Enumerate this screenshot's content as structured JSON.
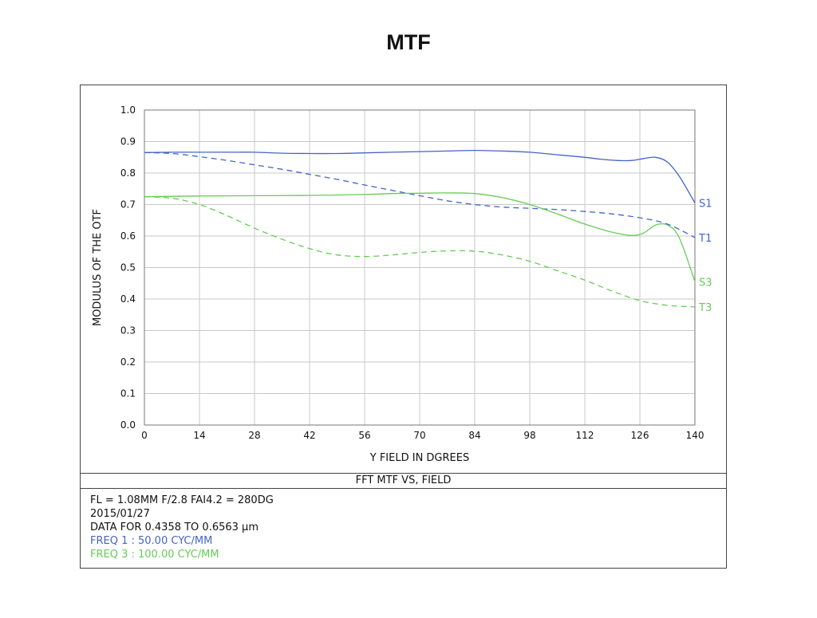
{
  "title": "MTF",
  "chart_data": {
    "type": "line",
    "xlabel": "Y  FIELD IN DGREES",
    "ylabel": "MODULUS  OF  THE  OTF",
    "xlim": [
      0,
      140
    ],
    "ylim": [
      0,
      1.0
    ],
    "x_ticks": [
      0,
      14,
      28,
      42,
      56,
      70,
      84,
      98,
      112,
      126,
      140
    ],
    "y_ticks": [
      "0.0",
      "0.1",
      "0.2",
      "0.3",
      "0.4",
      "0.5",
      "0.6",
      "0.7",
      "0.8",
      "0.9",
      "1.0"
    ],
    "grid": true,
    "series": [
      {
        "name": "S1",
        "color": "#4464c8",
        "dash": false,
        "x": [
          0,
          7,
          14,
          21,
          28,
          35,
          42,
          49,
          56,
          63,
          70,
          77,
          84,
          91,
          98,
          105,
          112,
          116,
          120,
          124,
          127,
          130,
          133,
          136,
          140
        ],
        "y": [
          0.865,
          0.866,
          0.866,
          0.866,
          0.866,
          0.863,
          0.862,
          0.862,
          0.864,
          0.866,
          0.868,
          0.87,
          0.872,
          0.87,
          0.866,
          0.858,
          0.85,
          0.844,
          0.84,
          0.84,
          0.846,
          0.85,
          0.835,
          0.79,
          0.705
        ]
      },
      {
        "name": "T1",
        "color": "#4464c8",
        "dash": true,
        "x": [
          0,
          7,
          14,
          21,
          28,
          35,
          42,
          49,
          56,
          63,
          70,
          77,
          84,
          91,
          98,
          105,
          112,
          119,
          126,
          133,
          140
        ],
        "y": [
          0.865,
          0.862,
          0.852,
          0.84,
          0.826,
          0.812,
          0.796,
          0.78,
          0.762,
          0.745,
          0.728,
          0.712,
          0.7,
          0.692,
          0.688,
          0.684,
          0.678,
          0.67,
          0.658,
          0.638,
          0.595
        ]
      },
      {
        "name": "S3",
        "color": "#66cc55",
        "dash": false,
        "x": [
          0,
          14,
          28,
          42,
          56,
          63,
          70,
          77,
          84,
          91,
          98,
          105,
          112,
          119,
          124,
          127,
          130,
          133,
          136,
          140
        ],
        "y": [
          0.725,
          0.727,
          0.728,
          0.729,
          0.732,
          0.735,
          0.736,
          0.737,
          0.735,
          0.722,
          0.7,
          0.67,
          0.638,
          0.612,
          0.602,
          0.61,
          0.635,
          0.635,
          0.595,
          0.455
        ]
      },
      {
        "name": "T3",
        "color": "#66cc55",
        "dash": true,
        "x": [
          0,
          7,
          14,
          21,
          28,
          35,
          42,
          49,
          56,
          63,
          70,
          77,
          84,
          91,
          98,
          105,
          112,
          119,
          126,
          133,
          140
        ],
        "y": [
          0.725,
          0.72,
          0.7,
          0.665,
          0.625,
          0.59,
          0.56,
          0.54,
          0.535,
          0.54,
          0.548,
          0.553,
          0.552,
          0.54,
          0.52,
          0.49,
          0.46,
          0.425,
          0.395,
          0.38,
          0.375
        ]
      }
    ]
  },
  "caption": "FFT  MTF  VS,  FIELD",
  "info": {
    "line1": "FL = 1.08MM   F/2.8   FAI4.2 = 280DG",
    "line2": "2015/01/27",
    "line3": "DATA  FOR  0.4358  TO  0.6563  μm",
    "freq1": "FREQ  1 :  50.00  CYC/MM",
    "freq3": "FREQ  3 :  100.00  CYC/MM",
    "freq1_color": "#4464c8",
    "freq3_color": "#66cc55"
  }
}
